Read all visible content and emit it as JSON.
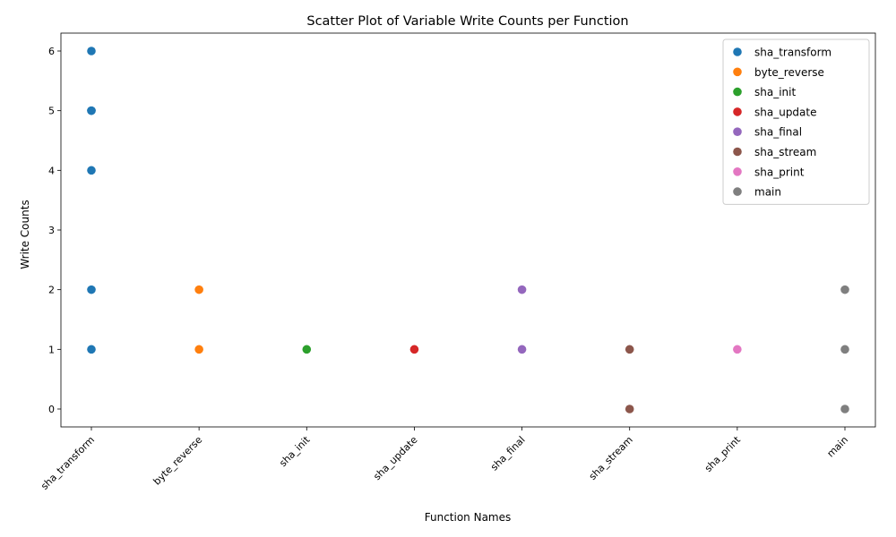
{
  "chart_data": {
    "type": "scatter",
    "title": "Scatter Plot of Variable Write Counts per Function",
    "xlabel": "Function Names",
    "ylabel": "Write Counts",
    "categories": [
      "sha_transform",
      "byte_reverse",
      "sha_init",
      "sha_update",
      "sha_final",
      "sha_stream",
      "sha_print",
      "main"
    ],
    "ylim": [
      -0.3,
      6.3
    ],
    "yticks": [
      0,
      1,
      2,
      3,
      4,
      5,
      6
    ],
    "grid": false,
    "legend_position": "top-right",
    "series": [
      {
        "name": "sha_transform",
        "color": "#1f77b4",
        "points": [
          [
            "sha_transform",
            6
          ],
          [
            "sha_transform",
            5
          ],
          [
            "sha_transform",
            5
          ],
          [
            "sha_transform",
            4
          ],
          [
            "sha_transform",
            2
          ],
          [
            "sha_transform",
            1
          ]
        ]
      },
      {
        "name": "byte_reverse",
        "color": "#ff7f0e",
        "points": [
          [
            "byte_reverse",
            2
          ],
          [
            "byte_reverse",
            1
          ]
        ]
      },
      {
        "name": "sha_init",
        "color": "#2ca02c",
        "points": [
          [
            "sha_init",
            1
          ]
        ]
      },
      {
        "name": "sha_update",
        "color": "#d62728",
        "points": [
          [
            "sha_update",
            1
          ]
        ]
      },
      {
        "name": "sha_final",
        "color": "#9467bd",
        "points": [
          [
            "sha_final",
            2
          ],
          [
            "sha_final",
            1
          ]
        ]
      },
      {
        "name": "sha_stream",
        "color": "#8c564b",
        "points": [
          [
            "sha_stream",
            1
          ],
          [
            "sha_stream",
            0
          ]
        ]
      },
      {
        "name": "sha_print",
        "color": "#e377c2",
        "points": [
          [
            "sha_print",
            1
          ]
        ]
      },
      {
        "name": "main",
        "color": "#7f7f7f",
        "points": [
          [
            "main",
            2
          ],
          [
            "main",
            1
          ],
          [
            "main",
            0
          ]
        ]
      }
    ]
  }
}
